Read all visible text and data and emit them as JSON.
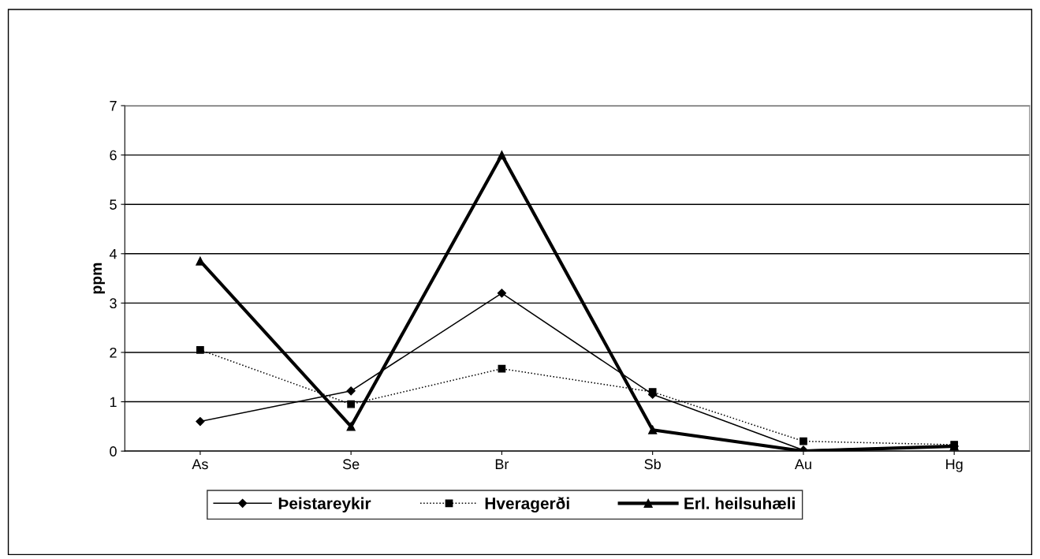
{
  "chart_data": {
    "type": "line",
    "ylabel": "ppm",
    "categories": [
      "As",
      "Se",
      "Br",
      "Sb",
      "Au",
      "Hg"
    ],
    "series": [
      {
        "name": "Þeistareykir",
        "color": "#000000",
        "marker": "diamond",
        "line_style": "solid",
        "values": [
          0.6,
          1.22,
          3.2,
          1.15,
          0.02,
          0.1
        ]
      },
      {
        "name": "Hveragerði",
        "color": "#000000",
        "marker": "square",
        "line_style": "dotted",
        "values": [
          2.05,
          0.95,
          1.67,
          1.2,
          0.2,
          0.13
        ]
      },
      {
        "name": "Erl. heilsuhæli",
        "color": "#000000",
        "marker": "triangle",
        "line_style": "solid",
        "values": [
          3.85,
          0.5,
          6.0,
          0.43,
          0.0,
          0.1
        ]
      }
    ],
    "ylim": [
      0,
      7
    ],
    "yticks": [
      0,
      1,
      2,
      3,
      4,
      5,
      6,
      7
    ],
    "grid": "y",
    "legend": "bottom"
  }
}
